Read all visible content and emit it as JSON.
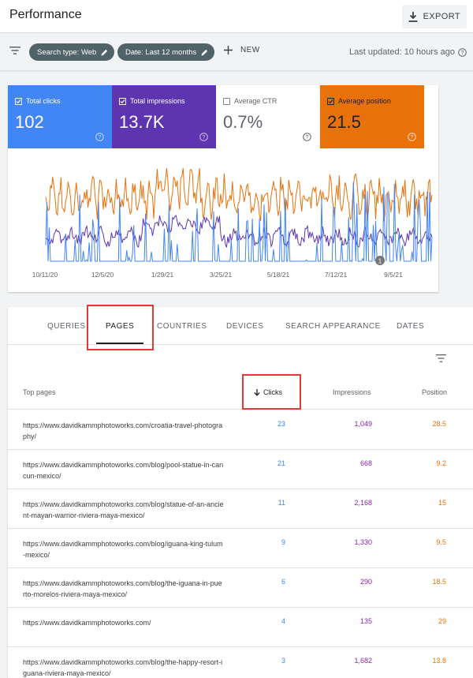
{
  "header": {
    "title": "Performance",
    "export_label": "EXPORT"
  },
  "filters": {
    "chips": [
      {
        "label": "Search type: Web"
      },
      {
        "label": "Date: Last 12 months"
      }
    ],
    "new_label": "NEW",
    "last_updated": "Last updated: 10 hours ago"
  },
  "metrics": [
    {
      "label": "Total clicks",
      "value": "102",
      "checked": true,
      "color": "#4285f4"
    },
    {
      "label": "Total impressions",
      "value": "13.7K",
      "checked": true,
      "color": "#5e35b1"
    },
    {
      "label": "Average CTR",
      "value": "0.7%",
      "checked": false,
      "color": "#ffffff"
    },
    {
      "label": "Average position",
      "value": "21.5",
      "checked": true,
      "color": "#e8710a"
    }
  ],
  "chart_data": {
    "type": "line",
    "x_tick_labels": [
      "10/11/20",
      "12/5/20",
      "1/29/21",
      "3/25/21",
      "5/18/21",
      "7/12/21",
      "9/5/21"
    ],
    "annotation": "1",
    "series": [
      {
        "color": "#e8710a"
      },
      {
        "color": "#5e35b1"
      },
      {
        "color": "#4285f4"
      }
    ]
  },
  "tabs": [
    {
      "label": "QUERIES",
      "active": false
    },
    {
      "label": "PAGES",
      "active": true
    },
    {
      "label": "COUNTRIES",
      "active": false
    },
    {
      "label": "DEVICES",
      "active": false
    },
    {
      "label": "SEARCH APPEARANCE",
      "active": false
    },
    {
      "label": "DATES",
      "active": false
    }
  ],
  "table": {
    "columns": {
      "pages": "Top pages",
      "clicks": "Clicks",
      "impressions": "Impressions",
      "position": "Position"
    },
    "rows": [
      {
        "url": "https://www.davidkammphotoworks.com/croatia-travel-photography/",
        "clicks": "23",
        "impressions": "1,049",
        "position": "28.5"
      },
      {
        "url": "https://www.davidkammphotoworks.com/blog/pool-statue-in-cancun-mexico/",
        "clicks": "21",
        "impressions": "668",
        "position": "9.2"
      },
      {
        "url": "https://www.davidkammphotoworks.com/blog/statue-of-an-ancient-mayan-warrior-riviera-maya-mexico/",
        "clicks": "11",
        "impressions": "2,168",
        "position": "15"
      },
      {
        "url": "https://www.davidkammphotoworks.com/blog/iguana-king-tulum-mexico/",
        "clicks": "9",
        "impressions": "1,330",
        "position": "9.5"
      },
      {
        "url": "https://www.davidkammphotoworks.com/blog/the-iguana-in-puerto-morelos-riviera-maya-mexico/",
        "clicks": "6",
        "impressions": "290",
        "position": "18.5"
      },
      {
        "url": "https://www.davidkammphotoworks.com/",
        "clicks": "4",
        "impressions": "135",
        "position": "29"
      },
      {
        "url": "https://www.davidkammphotoworks.com/blog/the-happy-resort-iguana-riviera-maya-mexico/",
        "clicks": "3",
        "impressions": "1,682",
        "position": "13.8"
      }
    ]
  }
}
